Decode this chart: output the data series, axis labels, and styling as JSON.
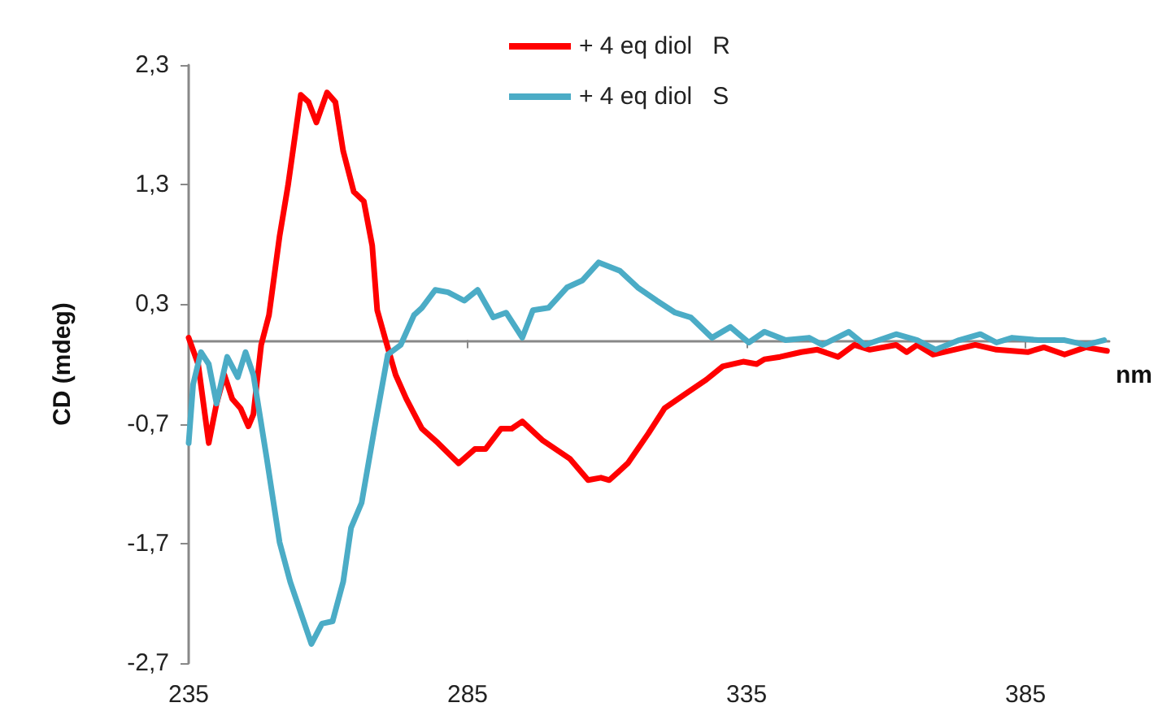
{
  "chart_data": {
    "type": "line",
    "ylabel": "CD (mdeg)",
    "xlabel": "nm",
    "xlim": [
      235,
      400
    ],
    "xticks": [
      235,
      285,
      335,
      385
    ],
    "ylim": [
      -2.7,
      2.3
    ],
    "yticks": [
      {
        "value": -2.7,
        "label": "-2,7"
      },
      {
        "value": -1.7,
        "label": "-1,7"
      },
      {
        "value": -0.7,
        "label": "-0,7"
      },
      {
        "value": 0.3,
        "label": "0,3"
      },
      {
        "value": 1.3,
        "label": "1,3"
      },
      {
        "value": 2.3,
        "label": "2,3"
      }
    ],
    "grid": false,
    "legend": "top",
    "marker": "none",
    "line_style": "solid",
    "series": [
      {
        "name": "+ 4 eq diol   R",
        "color": "#ff0000",
        "x": [
          235,
          236.7,
          238.6,
          240,
          241.4,
          242.8,
          244.3,
          245.7,
          246.6,
          248,
          249.4,
          251.3,
          252.8,
          255.1,
          256.5,
          257.9,
          259.8,
          261.3,
          262.7,
          264.6,
          266.4,
          267.9,
          268.8,
          270.3,
          272.1,
          274,
          276.8,
          279.7,
          283.4,
          286.3,
          288.2,
          291,
          292.9,
          294.8,
          298.5,
          303.3,
          306.6,
          308.9,
          310.4,
          313.7,
          317.4,
          320.3,
          324,
          327.8,
          330.7,
          334.4,
          336.8,
          338.2,
          341,
          344.8,
          347.7,
          351.4,
          354.3,
          357.1,
          361.8,
          363.7,
          365.6,
          368.4,
          372.2,
          376,
          379.8,
          385.4,
          388.3,
          392,
          395.8,
          399.6
        ],
        "values": [
          0.02,
          -0.2,
          -0.86,
          -0.53,
          -0.29,
          -0.49,
          -0.57,
          -0.72,
          -0.62,
          -0.04,
          0.21,
          0.87,
          1.29,
          2.05,
          1.99,
          1.82,
          2.07,
          1.99,
          1.58,
          1.24,
          1.16,
          0.79,
          0.25,
          0,
          -0.29,
          -0.49,
          -0.74,
          -0.86,
          -1.03,
          -0.91,
          -0.91,
          -0.74,
          -0.74,
          -0.68,
          -0.84,
          -0.99,
          -1.17,
          -1.15,
          -1.17,
          -1.03,
          -0.78,
          -0.57,
          -0.45,
          -0.33,
          -0.22,
          -0.18,
          -0.2,
          -0.16,
          -0.14,
          -0.1,
          -0.08,
          -0.14,
          -0.04,
          -0.08,
          -0.04,
          -0.1,
          -0.04,
          -0.12,
          -0.08,
          -0.04,
          -0.08,
          -0.1,
          -0.06,
          -0.12,
          -0.06,
          -0.09
        ]
      },
      {
        "name": "+ 4 eq diol   S",
        "color": "#4bacc6",
        "x": [
          235,
          235.8,
          237.2,
          238.6,
          240,
          241.9,
          243.8,
          245.2,
          246.6,
          249,
          251.3,
          253.2,
          257,
          258.9,
          260.8,
          262.7,
          264.1,
          266,
          268.3,
          270.7,
          273,
          275.4,
          276.8,
          279.2,
          281.5,
          284.4,
          286.8,
          289.6,
          291.9,
          294.8,
          296.7,
          299.5,
          302.8,
          305.6,
          308.5,
          312.3,
          315.5,
          318.9,
          322.2,
          325,
          328.8,
          332.1,
          335.4,
          338.2,
          342,
          346.2,
          348.6,
          353.3,
          356.2,
          361.8,
          365.6,
          368.9,
          373.1,
          376.9,
          379.8,
          382.6,
          387.3,
          392,
          395.8,
          399.1
        ],
        "values": [
          -0.86,
          -0.37,
          -0.1,
          -0.2,
          -0.53,
          -0.14,
          -0.31,
          -0.1,
          -0.29,
          -0.99,
          -1.69,
          -2.02,
          -2.54,
          -2.37,
          -2.35,
          -2.02,
          -1.57,
          -1.36,
          -0.74,
          -0.12,
          -0.04,
          0.21,
          0.27,
          0.42,
          0.4,
          0.33,
          0.42,
          0.19,
          0.23,
          0.02,
          0.25,
          0.27,
          0.44,
          0.5,
          0.65,
          0.58,
          0.44,
          0.33,
          0.23,
          0.19,
          0.02,
          0.11,
          -0.02,
          0.07,
          0,
          0.02,
          -0.04,
          0.07,
          -0.04,
          0.05,
          0,
          -0.08,
          0,
          0.05,
          -0.02,
          0.02,
          0,
          0,
          -0.04,
          0
        ]
      }
    ]
  }
}
